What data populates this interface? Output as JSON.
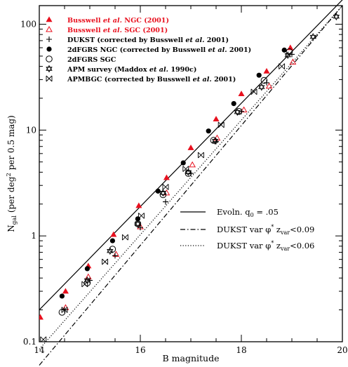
{
  "chart_data": {
    "type": "scatter",
    "xlabel": "B magnitude",
    "ylabel": "N_gal (per deg^2 per 0.5 mag)",
    "xlim": [
      14,
      20
    ],
    "ylim": [
      0.1,
      150
    ],
    "yscale": "log",
    "x_ticks": [
      14,
      16,
      18,
      20
    ],
    "y_ticks": [
      0.1,
      1,
      10,
      100
    ],
    "y_tick_labels": [
      "0.1",
      "1",
      "10",
      "100"
    ],
    "grid": false,
    "legend_position": "top-left",
    "series": [
      {
        "name": "Busswell et al. NGC (2001)",
        "name_parts": [
          "Busswell ",
          "et al.",
          " NGC (2001)"
        ],
        "marker": "triangle-filled",
        "color": "#e8101e",
        "points": [
          [
            14.02,
            0.17
          ],
          [
            14.52,
            0.3
          ],
          [
            14.97,
            0.52
          ],
          [
            15.47,
            1.03
          ],
          [
            15.97,
            1.93
          ],
          [
            16.52,
            3.55
          ],
          [
            17.0,
            6.8
          ],
          [
            17.5,
            12.7
          ],
          [
            18.0,
            22.0
          ],
          [
            18.5,
            36.0
          ],
          [
            18.97,
            60.0
          ]
        ]
      },
      {
        "name": "Busswell et al. SGC (2001)",
        "name_parts": [
          "Busswell ",
          "et al.",
          " SGC (2001)"
        ],
        "marker": "triangle-open",
        "color": "#e8101e",
        "points": [
          [
            14.52,
            0.21
          ],
          [
            14.97,
            0.41
          ],
          [
            15.52,
            0.67
          ],
          [
            16.0,
            1.22
          ],
          [
            16.52,
            2.55
          ],
          [
            17.03,
            4.7
          ],
          [
            17.52,
            8.4
          ],
          [
            18.05,
            15.5
          ],
          [
            18.55,
            26.0
          ],
          [
            19.02,
            44.0
          ]
        ]
      },
      {
        "name": "DUKST (corrected by Busswell et al. 2001)",
        "name_parts": [
          "DUKST (corrected by Busswell ",
          "et al.",
          " 2001)"
        ],
        "marker": "plus",
        "color": "#000000",
        "points": [
          [
            14.5,
            0.2
          ],
          [
            15.0,
            0.38
          ],
          [
            15.5,
            0.65
          ],
          [
            16.0,
            1.2
          ],
          [
            16.5,
            2.1
          ],
          [
            17.0,
            3.9
          ],
          [
            17.5,
            7.8
          ],
          [
            18.0,
            15.0
          ],
          [
            18.5,
            28.0
          ],
          [
            19.0,
            52.0
          ]
        ]
      },
      {
        "name": "2dFGRS NGC (corrected by Busswell et al. 2001)",
        "name_parts": [
          "2dFGRS NGC (corrected by Busswell ",
          "et al.",
          " 2001)"
        ],
        "marker": "circle-filled",
        "color": "#000000",
        "points": [
          [
            14.45,
            0.27
          ],
          [
            14.95,
            0.49
          ],
          [
            15.45,
            0.9
          ],
          [
            15.95,
            1.45
          ],
          [
            16.35,
            2.65
          ],
          [
            16.85,
            4.9
          ],
          [
            17.35,
            9.8
          ],
          [
            17.85,
            17.8
          ],
          [
            18.35,
            33.0
          ],
          [
            18.85,
            57.0
          ]
        ]
      },
      {
        "name": "2dFGRS SGC",
        "name_parts": [
          "2dFGRS SGC"
        ],
        "marker": "circle-open",
        "color": "#000000",
        "points": [
          [
            14.45,
            0.19
          ],
          [
            14.95,
            0.36
          ],
          [
            15.45,
            0.75
          ],
          [
            15.95,
            1.3
          ],
          [
            16.45,
            2.45
          ],
          [
            16.95,
            3.9
          ],
          [
            17.45,
            8.0
          ],
          [
            17.95,
            15.0
          ],
          [
            18.45,
            29.5
          ],
          [
            18.95,
            55.0
          ]
        ]
      },
      {
        "name": "APM survey (Maddox et al. 1990c)",
        "name_parts": [
          "APM survey (Maddox ",
          "et al.",
          " 1990c)"
        ],
        "marker": "star-open",
        "color": "#000000",
        "points": [
          [
            14.95,
            0.38
          ],
          [
            15.4,
            0.72
          ],
          [
            15.95,
            1.3
          ],
          [
            16.45,
            2.55
          ],
          [
            16.95,
            4.0
          ],
          [
            17.48,
            7.9
          ],
          [
            17.92,
            14.8
          ],
          [
            18.4,
            25.5
          ],
          [
            18.92,
            51.0
          ],
          [
            19.42,
            76.0
          ],
          [
            19.88,
            118.0
          ]
        ]
      },
      {
        "name": "APMBGC (corrected by Busswell et al. 2001)",
        "name_parts": [
          "APMBGC (corrected by Busswell ",
          "et al.",
          " 2001)"
        ],
        "marker": "bowtie",
        "color": "#000000",
        "points": [
          [
            14.08,
            0.105
          ],
          [
            14.5,
            0.2
          ],
          [
            14.9,
            0.35
          ],
          [
            15.3,
            0.57
          ],
          [
            15.7,
            0.97
          ],
          [
            16.02,
            1.55
          ],
          [
            16.5,
            2.9
          ],
          [
            16.9,
            4.3
          ],
          [
            17.2,
            5.8
          ],
          [
            17.6,
            11.2
          ],
          [
            18.25,
            23.0
          ],
          [
            18.8,
            40.0
          ]
        ]
      }
    ],
    "models": [
      {
        "name": "Evoln. q0 = .05",
        "style": "solid",
        "points": [
          [
            14.0,
            0.2
          ],
          [
            20.0,
            170.0
          ]
        ]
      },
      {
        "name": "DUKST var phi* zvar<0.09",
        "style": "dashdot",
        "points": [
          [
            14.0,
            0.06
          ],
          [
            20.0,
            150.0
          ]
        ]
      },
      {
        "name": "DUKST var phi* zvar<0.06",
        "style": "dotted",
        "points": [
          [
            14.0,
            0.085
          ],
          [
            20.0,
            150.0
          ]
        ]
      }
    ],
    "model_legend": [
      {
        "text": "Evoln. q",
        "sub": "0",
        "rest": " = .05"
      },
      {
        "text": "DUKST var φ",
        "sup": "*",
        "mid": " z",
        "sub": "var",
        "rest": "<0.09"
      },
      {
        "text": "DUKST var φ",
        "sup": "*",
        "mid": " z",
        "sub": "var",
        "rest": "<0.06"
      }
    ],
    "ylabel_parts": {
      "main": "N",
      "sub": "gal",
      "mid": " (per deg",
      "sup": "2",
      "rest": " per 0.5 mag)"
    }
  }
}
